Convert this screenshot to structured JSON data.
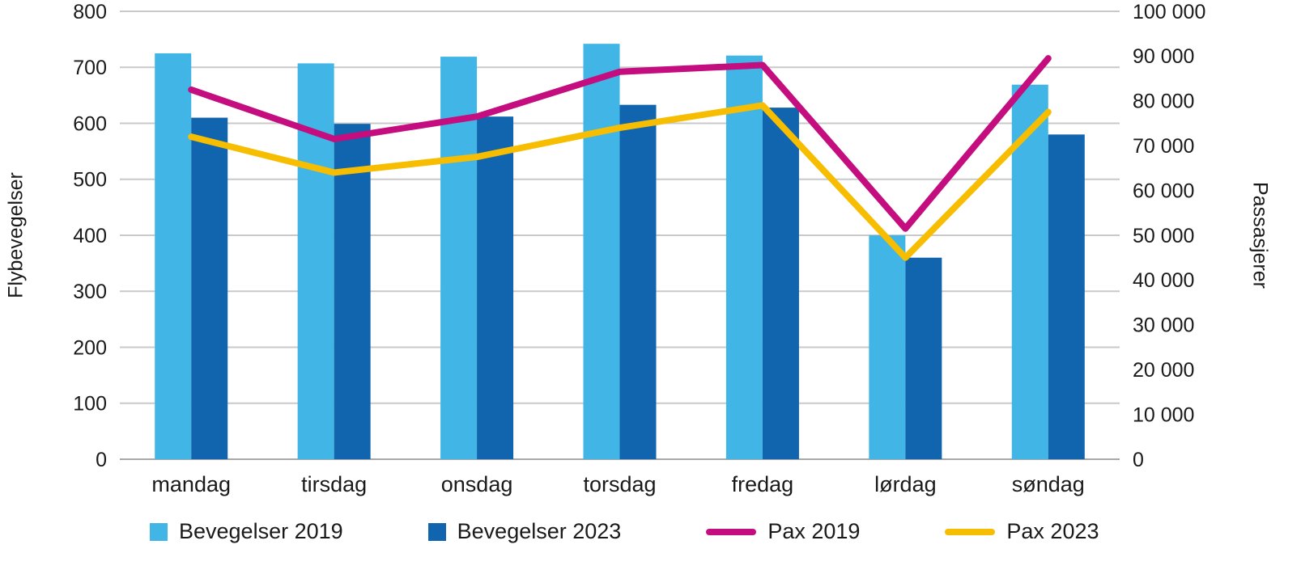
{
  "chart_data": {
    "type": "combo-bar-line",
    "categories": [
      "mandag",
      "tirsdag",
      "onsdag",
      "torsdag",
      "fredag",
      "lørdag",
      "søndag"
    ],
    "series": [
      {
        "name": "Bevegelser 2019",
        "type": "bar",
        "axis": "left",
        "color": "#41b6e6",
        "values": [
          725,
          707,
          719,
          742,
          721,
          400,
          669
        ]
      },
      {
        "name": "Bevegelser 2023",
        "type": "bar",
        "axis": "left",
        "color": "#1164ae",
        "values": [
          610,
          599,
          612,
          633,
          628,
          360,
          580
        ]
      },
      {
        "name": "Pax 2019",
        "type": "line",
        "axis": "right",
        "color": "#c40d7e",
        "values": [
          82500,
          71500,
          76500,
          86500,
          88000,
          51500,
          89500
        ]
      },
      {
        "name": "Pax 2023",
        "type": "line",
        "axis": "right",
        "color": "#f7bd00",
        "values": [
          72000,
          64000,
          67500,
          74000,
          79000,
          45000,
          77500
        ]
      }
    ],
    "left_axis": {
      "title": "Flybevegelser",
      "min": 0,
      "max": 800,
      "step": 100,
      "tick_labels": [
        "0",
        "100",
        "200",
        "300",
        "400",
        "500",
        "600",
        "700",
        "800"
      ]
    },
    "right_axis": {
      "title": "Passasjerer",
      "min": 0,
      "max": 100000,
      "step": 10000,
      "tick_labels": [
        "0",
        "10 000",
        "20 000",
        "30 000",
        "40 000",
        "50 000",
        "60 000",
        "70 000",
        "80 000",
        "90 000",
        "100 000"
      ]
    },
    "grid": true,
    "legend_position": "bottom",
    "gridline_color": "#c9c9c9",
    "baseline_color": "#a8a8a8",
    "text_color": "#1a1a1a"
  }
}
